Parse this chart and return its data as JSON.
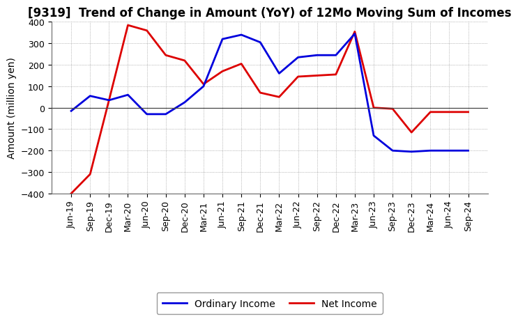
{
  "title": "[9319]  Trend of Change in Amount (YoY) of 12Mo Moving Sum of Incomes",
  "ylabel": "Amount (million yen)",
  "x_labels": [
    "Jun-19",
    "Sep-19",
    "Dec-19",
    "Mar-20",
    "Jun-20",
    "Sep-20",
    "Dec-20",
    "Mar-21",
    "Jun-21",
    "Sep-21",
    "Dec-21",
    "Mar-22",
    "Jun-22",
    "Sep-22",
    "Dec-22",
    "Mar-23",
    "Jun-23",
    "Sep-23",
    "Dec-23",
    "Mar-24",
    "Jun-24",
    "Sep-24"
  ],
  "ordinary_income": [
    -15,
    55,
    35,
    60,
    -30,
    -30,
    25,
    100,
    320,
    340,
    305,
    160,
    235,
    245,
    245,
    345,
    -130,
    -200,
    -205,
    -200,
    -200,
    -200
  ],
  "net_income": [
    -400,
    -310,
    35,
    385,
    360,
    245,
    220,
    110,
    170,
    205,
    70,
    50,
    145,
    150,
    155,
    355,
    0,
    -5,
    -115,
    -20,
    -20,
    -20
  ],
  "ordinary_color": "#0000dd",
  "net_color": "#dd0000",
  "ylim": [
    -400,
    400
  ],
  "yticks": [
    -400,
    -300,
    -200,
    -100,
    0,
    100,
    200,
    300,
    400
  ],
  "background_color": "#ffffff",
  "grid_color": "#888888",
  "title_fontsize": 12,
  "axis_label_fontsize": 10,
  "tick_fontsize": 9,
  "legend_fontsize": 10,
  "line_width": 2.0
}
